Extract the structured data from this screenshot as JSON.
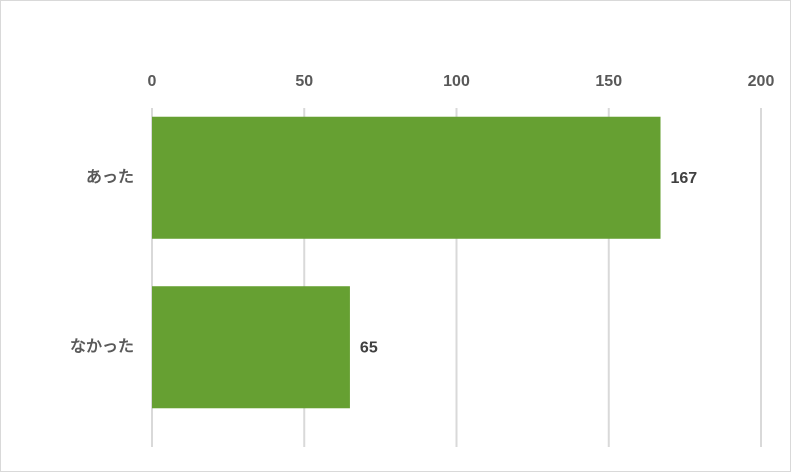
{
  "chart_data": {
    "type": "bar",
    "orientation": "horizontal",
    "axis_position": "top",
    "categories": [
      "あった",
      "なかった"
    ],
    "values": [
      167,
      65
    ],
    "color": "#66a032",
    "xlim": [
      0,
      200
    ],
    "xticks": [
      0,
      50,
      100,
      150,
      200
    ],
    "grid": true,
    "data_labels": true
  }
}
